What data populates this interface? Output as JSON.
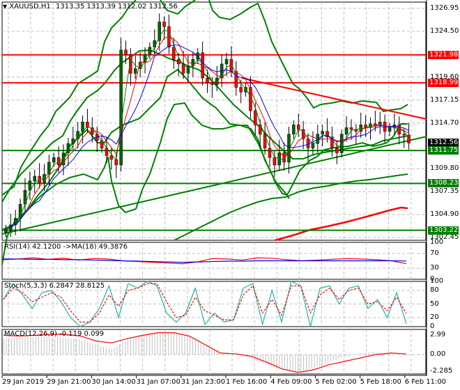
{
  "header": {
    "symbol_label": "XAUUSD,H1",
    "ohlc": "1313.35 1313.39 1312.02 1312.56",
    "dropdown_icon": "triangle-down-icon"
  },
  "price_axis": {
    "labels": [
      "1326.95",
      "1324.50",
      "1319.60",
      "1317.15",
      "1314.70",
      "1309.80",
      "1307.35",
      "1304.90",
      "1302.45"
    ],
    "current_price": {
      "value": "1312.56",
      "color": "#000000"
    },
    "levels": [
      {
        "value": "1321.98",
        "color": "#ff0000"
      },
      {
        "value": "1318.99",
        "color": "#ff0000"
      },
      {
        "value": "1311.75",
        "color": "#008000"
      },
      {
        "value": "1308.23",
        "color": "#008000"
      },
      {
        "value": "1303.22",
        "color": "#008000"
      }
    ]
  },
  "indicators": {
    "rsi": {
      "label": "RSI(14) 42.1200  ->MA(18) 49.3876",
      "axis": [
        "100",
        "70",
        "30",
        "0"
      ]
    },
    "stoch": {
      "label": "Stoch(5,3,3) 6.2847 28.8125",
      "axis": [
        "100",
        "80",
        "50",
        "20",
        "0"
      ]
    },
    "macd": {
      "label": "MACD(12,26,9) -0.119 0.099",
      "axis": [
        "2.99",
        "0.00",
        "-2.285"
      ]
    }
  },
  "time_axis": {
    "labels": [
      "29 Jan 2019",
      "29 Jan 21:00",
      "30 Jan 14:00",
      "31 Jan 07:00",
      "31 Jan 23:00",
      "1 Feb 16:00",
      "4 Feb 09:00",
      "5 Feb 02:00",
      "5 Feb 18:00",
      "6 Feb 11:00"
    ]
  },
  "colors": {
    "bull_candle": "#006400",
    "bear_candle": "#ff0000",
    "bollinger": "#008000",
    "resistance": "#ff0000",
    "support": "#008000",
    "rsi_line": "#ff0000",
    "rsi_ma": "#0000ff",
    "stoch_main": "#20b2aa",
    "stoch_signal": "#ff0000",
    "macd_hist": "#c0c0c0",
    "macd_signal": "#ff0000",
    "grid": "#c0c0c0"
  },
  "chart_data": [
    {
      "type": "candlestick",
      "title": "XAUUSD,H1",
      "ohlc_last": {
        "open": 1313.35,
        "high": 1313.39,
        "low": 1312.02,
        "close": 1312.56
      },
      "ylim": [
        1302.45,
        1326.95
      ],
      "x_ticks": [
        "29 Jan 2019",
        "29 Jan 21:00",
        "30 Jan 14:00",
        "31 Jan 07:00",
        "31 Jan 23:00",
        "1 Feb 16:00",
        "4 Feb 09:00",
        "5 Feb 02:00",
        "5 Feb 18:00",
        "6 Feb 11:00"
      ],
      "y_ticks": [
        1326.95,
        1324.5,
        1319.6,
        1317.15,
        1314.7,
        1309.8,
        1307.35,
        1304.9,
        1302.45
      ],
      "close_series": [
        1303.3,
        1303.8,
        1304.5,
        1306.0,
        1307.5,
        1308.5,
        1309.0,
        1308.3,
        1309.2,
        1310.5,
        1311.0,
        1310.2,
        1311.5,
        1312.5,
        1313.0,
        1313.8,
        1314.8,
        1314.2,
        1313.5,
        1312.8,
        1312.0,
        1311.2,
        1310.8,
        1310.2,
        1322.5,
        1322.0,
        1320.0,
        1320.5,
        1321.2,
        1322.0,
        1322.8,
        1323.5,
        1325.5,
        1325.0,
        1322.8,
        1321.5,
        1321.0,
        1320.0,
        1320.8,
        1321.5,
        1322.2,
        1319.5,
        1319.0,
        1318.8,
        1319.5,
        1321.0,
        1321.5,
        1320.2,
        1318.5,
        1318.0,
        1318.5,
        1316.0,
        1314.5,
        1313.5,
        1312.0,
        1311.0,
        1310.2,
        1311.5,
        1310.5,
        1313.5,
        1314.5,
        1314.0,
        1313.0,
        1312.0,
        1312.5,
        1313.5,
        1313.8,
        1313.2,
        1312.0,
        1311.5,
        1313.5,
        1314.2,
        1314.0,
        1313.8,
        1314.5,
        1314.2,
        1314.6,
        1314.4,
        1314.8,
        1313.8,
        1314.2,
        1314.5,
        1313.5,
        1313.4,
        1312.56
      ],
      "horizontal_levels": [
        {
          "price": 1321.98,
          "color": "red",
          "role": "resistance"
        },
        {
          "price": 1318.99,
          "color": "red",
          "role": "resistance"
        },
        {
          "price": 1311.75,
          "color": "green",
          "role": "support"
        },
        {
          "price": 1308.23,
          "color": "green",
          "role": "support"
        },
        {
          "price": 1303.22,
          "color": "green",
          "role": "support"
        }
      ],
      "trendlines": [
        {
          "color": "red",
          "from": {
            "x": "1 Feb 16:00",
            "price": 1319.2
          },
          "to": {
            "x": "6 Feb 11:00",
            "price": 1315.2
          },
          "role": "descending resistance"
        },
        {
          "color": "green",
          "from": {
            "x": "29 Jan 2019",
            "price": 1302.4
          },
          "to": {
            "x": "6 Feb 11:00",
            "price": 1313.5
          },
          "role": "ascending support"
        }
      ],
      "overlays": [
        "Bollinger Bands (green)",
        "Moving averages (red, blue, green thin)",
        "long-period MAs (green, red)"
      ],
      "grid": true
    },
    {
      "type": "line",
      "title": "RSI(14) 42.1200 ->MA(18) 49.3876",
      "ylim": [
        0,
        100
      ],
      "y_ticks": [
        100,
        70,
        30,
        0
      ],
      "series": [
        {
          "name": "RSI(14)",
          "last": 42.12,
          "values": [
            53,
            55,
            58,
            54,
            57,
            52,
            56,
            55,
            50,
            48,
            46,
            44,
            42,
            47,
            56,
            55,
            52,
            58,
            57,
            53,
            50,
            52,
            54,
            56,
            55,
            53,
            50,
            42.12
          ]
        },
        {
          "name": "MA(18)",
          "last": 49.3876,
          "values": [
            55,
            55,
            54,
            54,
            53,
            53,
            52,
            51,
            50,
            49,
            48,
            47,
            46,
            47,
            48,
            49,
            49,
            50,
            50,
            50,
            50,
            50,
            50,
            50,
            50,
            50,
            50,
            49.39
          ]
        }
      ]
    },
    {
      "type": "line",
      "title": "Stoch(5,3,3) 6.2847 28.8125",
      "ylim": [
        0,
        100
      ],
      "y_ticks": [
        100,
        80,
        50,
        20,
        0
      ],
      "series": [
        {
          "name": "%K",
          "last": 6.2847,
          "values": [
            60,
            95,
            70,
            40,
            75,
            80,
            55,
            20,
            0,
            10,
            40,
            90,
            20,
            95,
            85,
            100,
            90,
            30,
            10,
            30,
            85,
            5,
            30,
            10,
            15,
            85,
            95,
            5,
            80,
            10,
            100,
            90,
            0,
            85,
            90,
            50,
            85,
            90,
            40,
            60,
            20,
            75,
            6.28
          ]
        },
        {
          "name": "%D",
          "last": 28.8125,
          "values": [
            60,
            85,
            75,
            55,
            65,
            75,
            65,
            35,
            10,
            10,
            30,
            70,
            45,
            80,
            85,
            95,
            95,
            55,
            20,
            25,
            65,
            35,
            25,
            15,
            15,
            70,
            90,
            30,
            60,
            25,
            90,
            90,
            30,
            70,
            85,
            60,
            80,
            85,
            50,
            55,
            35,
            65,
            28.81
          ]
        }
      ]
    },
    {
      "type": "bar",
      "title": "MACD(12,26,9) -0.119 0.099",
      "ylim": [
        -2.285,
        2.99
      ],
      "y_ticks": [
        2.99,
        0.0,
        -2.285
      ],
      "series": [
        {
          "name": "MACD histogram",
          "last": -0.119,
          "values": [
            1.9,
            2.0,
            2.1,
            2.1,
            2.0,
            1.8,
            1.2,
            0.6,
            1.8,
            2.3,
            2.6,
            2.7,
            2.2,
            1.2,
            0.2,
            0.0,
            -0.5,
            -1.2,
            -1.8,
            -2.1,
            -1.6,
            -0.9,
            -0.3,
            0.2,
            0.3,
            0.1,
            -0.119
          ]
        },
        {
          "name": "Signal",
          "last": 0.099,
          "values": [
            2.3,
            2.2,
            2.3,
            2.4,
            2.4,
            2.2,
            1.6,
            1.4,
            1.9,
            2.3,
            2.6,
            2.6,
            2.2,
            1.2,
            0.2,
            0.1,
            -0.2,
            -0.9,
            -1.7,
            -2.1,
            -1.8,
            -1.2,
            -0.8,
            -0.4,
            0.0,
            0.2,
            0.099
          ]
        }
      ]
    }
  ]
}
